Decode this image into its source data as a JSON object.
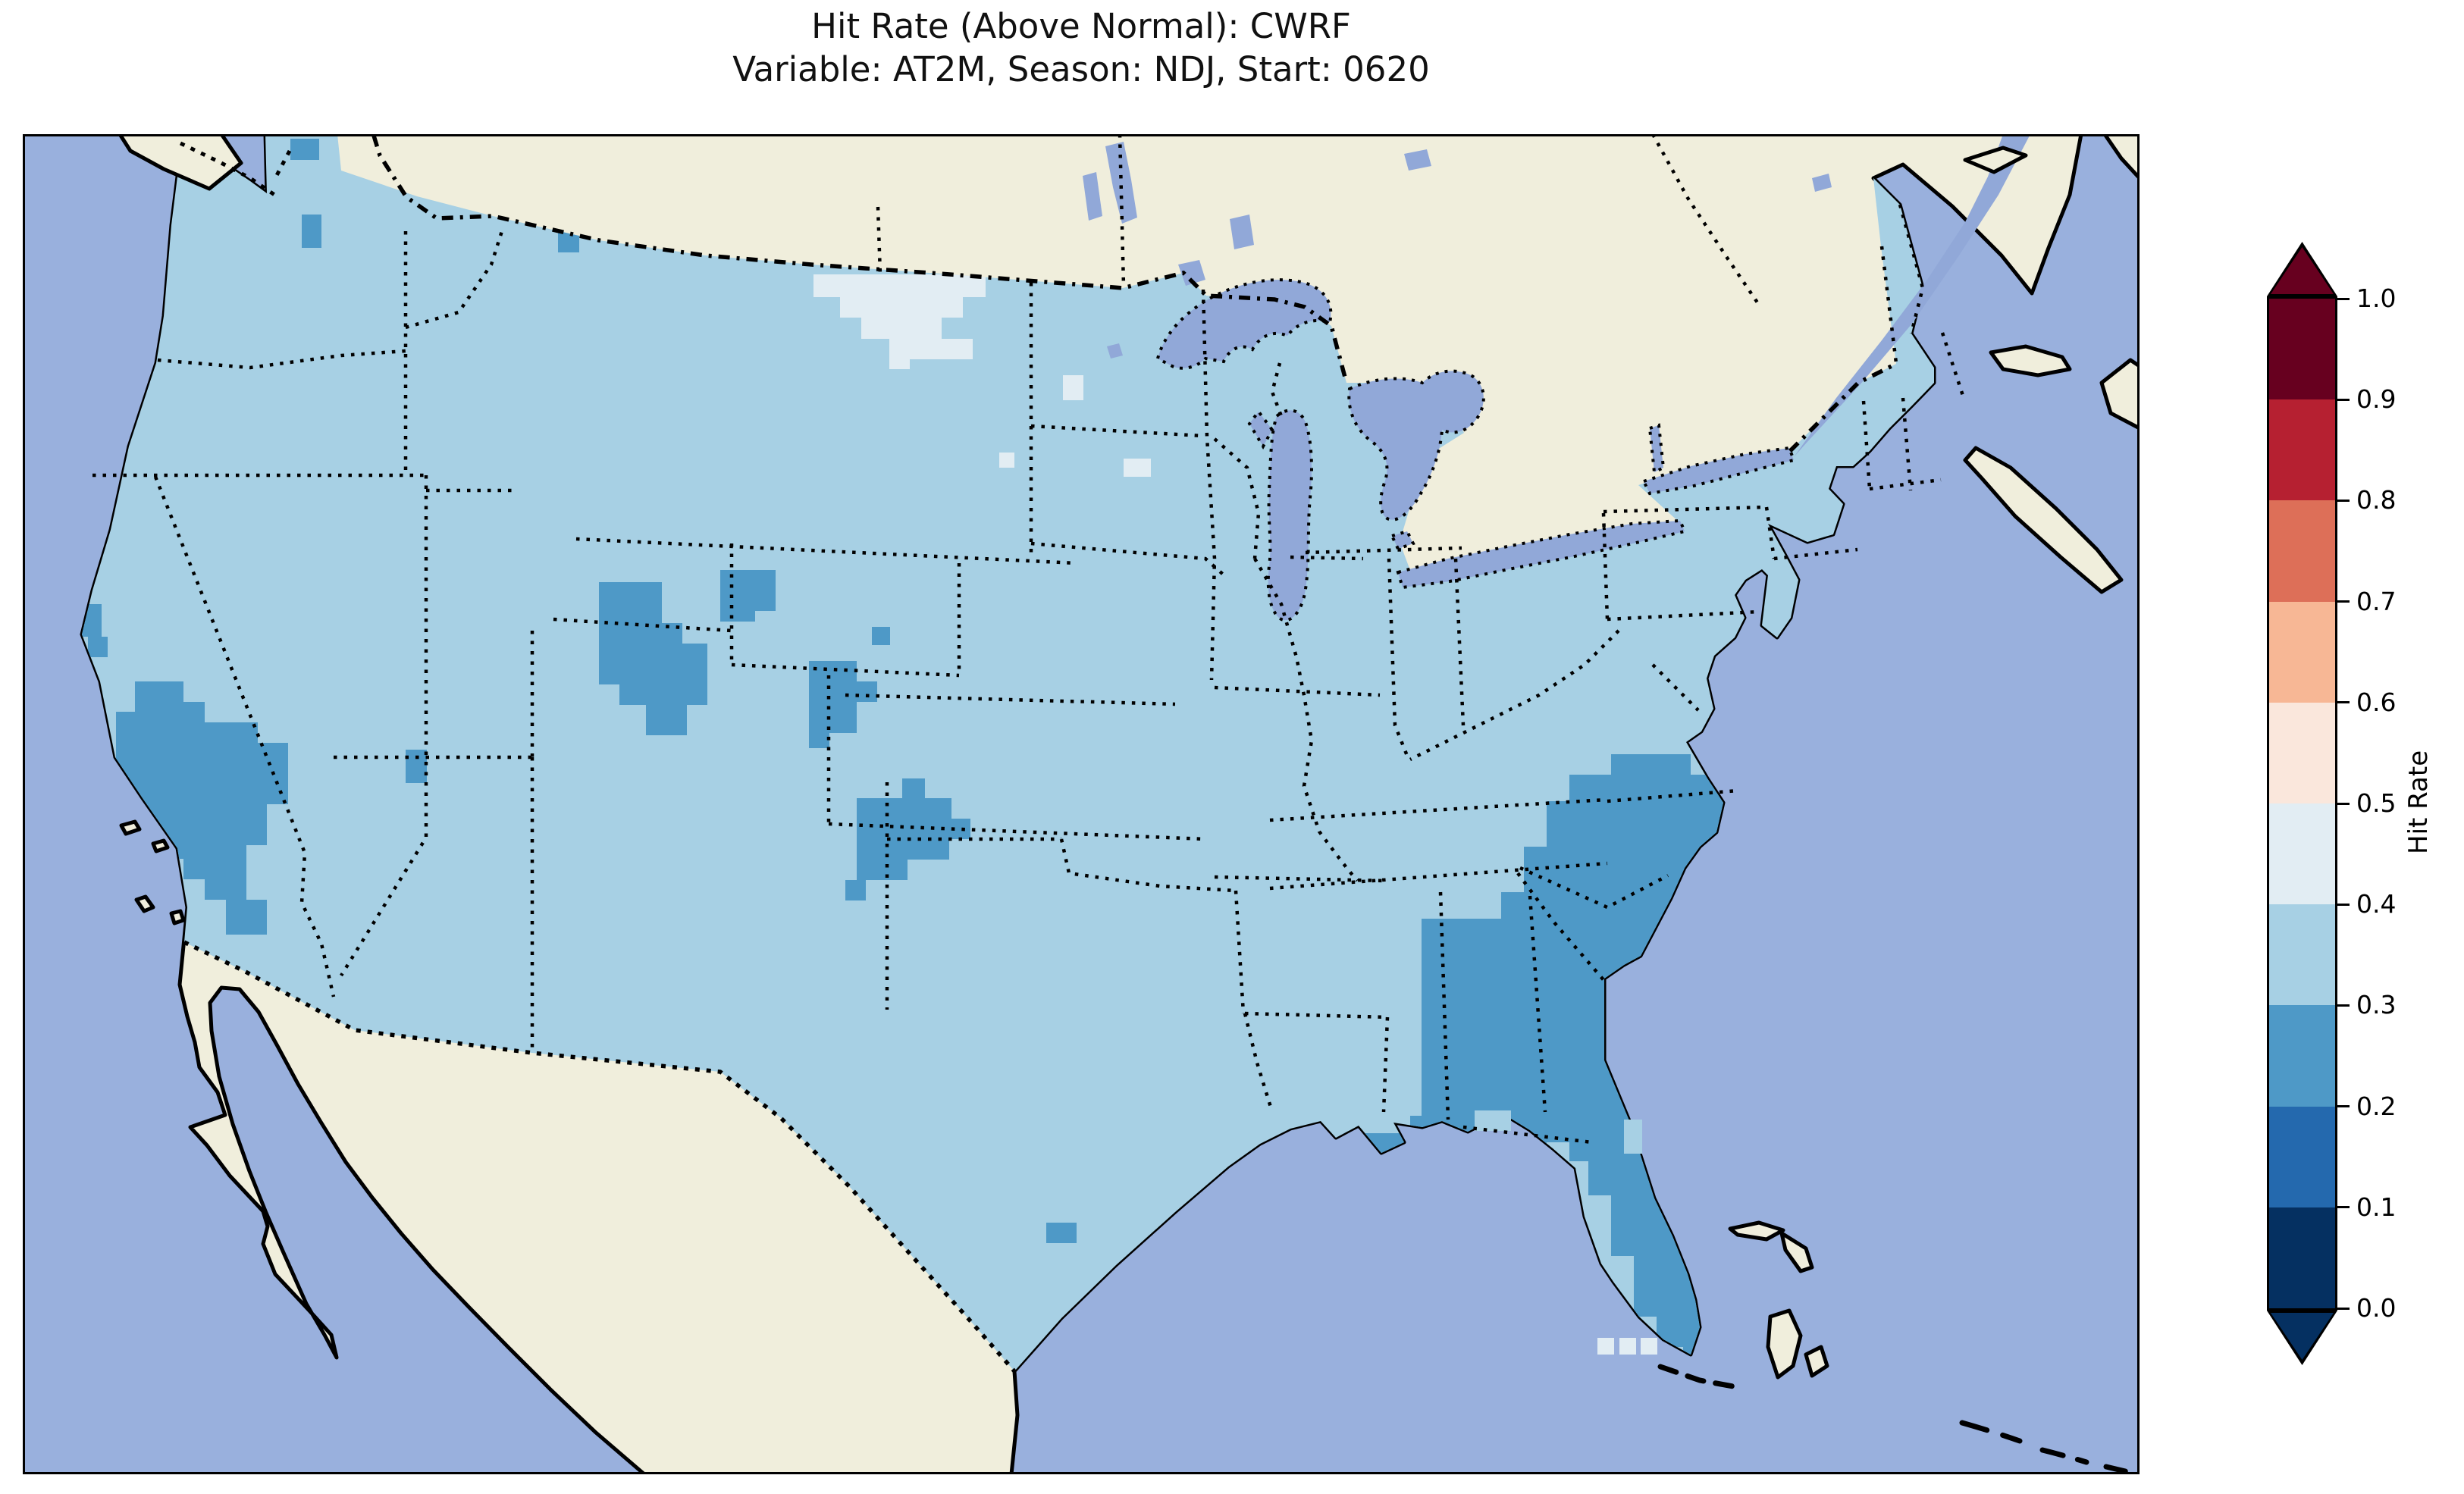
{
  "figure": {
    "title_line1": "Hit Rate (Above Normal): CWRF",
    "title_line2": "Variable: AT2M, Season: NDJ, Start: 0620"
  },
  "colorbar": {
    "label": "Hit Rate",
    "tick_labels": [
      "1.0",
      "0.9",
      "0.8",
      "0.7",
      "0.6",
      "0.5",
      "0.4",
      "0.3",
      "0.2",
      "0.1",
      "0.0"
    ],
    "bins_top_to_bottom": [
      {
        "range": "0.9-1.0",
        "color": "#67001f"
      },
      {
        "range": "0.8-0.9",
        "color": "#b62031"
      },
      {
        "range": "0.7-0.8",
        "color": "#dd6f58"
      },
      {
        "range": "0.6-0.7",
        "color": "#f7b795"
      },
      {
        "range": "0.5-0.6",
        "color": "#fae7dc"
      },
      {
        "range": "0.4-0.5",
        "color": "#e2edf3"
      },
      {
        "range": "0.3-0.4",
        "color": "#a7d0e4"
      },
      {
        "range": "0.2-0.3",
        "color": "#4e99c7"
      },
      {
        "range": "0.1-0.2",
        "color": "#2469ae"
      },
      {
        "range": "0.0-0.1",
        "color": "#053061"
      }
    ],
    "over_color": "#67001f",
    "under_color": "#053061"
  },
  "map": {
    "colors": {
      "ocean": "#99b0dd",
      "lake": "#91a8d8",
      "land": "#f0eedc",
      "coastline": "#000000",
      "bin_02_03": "#4e99c7",
      "bin_03_04": "#a7d0e4",
      "bin_04_05": "#e2edf3"
    }
  },
  "chart_data": {
    "type": "heatmap",
    "title": "Hit Rate (Above Normal): CWRF",
    "subtitle": "Variable: AT2M, Season: NDJ, Start: 0620",
    "variable": "AT2M",
    "season": "NDJ",
    "start": "0620",
    "model": "CWRF",
    "colorbar_label": "Hit Rate",
    "colorbar_range": [
      0.0,
      1.0
    ],
    "colorbar_ticks": [
      1.0,
      0.9,
      0.8,
      0.7,
      0.6,
      0.5,
      0.4,
      0.3,
      0.2,
      0.1,
      0.0
    ],
    "colormap": "RdBu_r, discrete 0.1 bins, extend both",
    "legend_position": "right",
    "grid": false,
    "extent": "Contiguous United States (with S. Canada, N. Mexico, Bahamas context)",
    "regions": [
      {
        "area": "Most of the contiguous US",
        "hit_rate_bin": "0.3-0.4"
      },
      {
        "area": "Southeast: eastern North Carolina, South Carolina, Georgia, Florida, SE Alabama, Mississippi delta",
        "hit_rate_bin": "0.2-0.3"
      },
      {
        "area": "Southern California and western Arizona deserts",
        "hit_rate_bin": "0.2-0.3"
      },
      {
        "area": "San Francisco Bay cells",
        "hit_rate_bin": "0.2-0.3"
      },
      {
        "area": "Colorado / Wyoming Rockies patches",
        "hit_rate_bin": "0.2-0.3"
      },
      {
        "area": "SE Colorado - Kansas border patches",
        "hit_rate_bin": "0.2-0.3"
      },
      {
        "area": "Texas panhandle / western Oklahoma patch",
        "hit_rate_bin": "0.2-0.3"
      },
      {
        "area": "NW New Mexico single cell; N Idaho border cell; Puget Sound border cells",
        "hit_rate_bin": "0.2-0.3"
      },
      {
        "area": "Northern North Dakota along Canadian border",
        "hit_rate_bin": "0.4-0.5"
      },
      {
        "area": "Scattered single cells (NW Minnesota, S of Florida Keys)",
        "hit_rate_bin": "0.4-0.5"
      }
    ]
  }
}
